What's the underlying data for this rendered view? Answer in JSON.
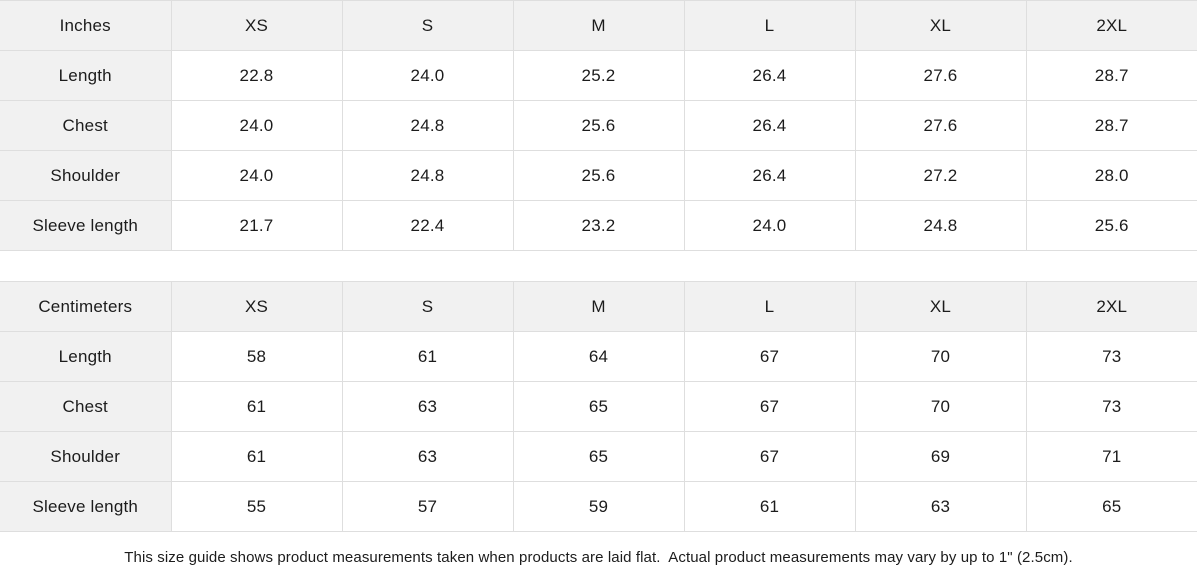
{
  "ui": {
    "header_bg": "#f1f1f1",
    "border_color": "#dedede",
    "text_color": "#1c1c1c",
    "background": "#ffffff"
  },
  "tables": [
    {
      "unit_label": "Inches",
      "sizes": [
        "XS",
        "S",
        "M",
        "L",
        "XL",
        "2XL"
      ],
      "rows": [
        {
          "label": "Length",
          "values": [
            "22.8",
            "24.0",
            "25.2",
            "26.4",
            "27.6",
            "28.7"
          ]
        },
        {
          "label": "Chest",
          "values": [
            "24.0",
            "24.8",
            "25.6",
            "26.4",
            "27.6",
            "28.7"
          ]
        },
        {
          "label": "Shoulder",
          "values": [
            "24.0",
            "24.8",
            "25.6",
            "26.4",
            "27.2",
            "28.0"
          ]
        },
        {
          "label": "Sleeve length",
          "values": [
            "21.7",
            "22.4",
            "23.2",
            "24.0",
            "24.8",
            "25.6"
          ]
        }
      ]
    },
    {
      "unit_label": "Centimeters",
      "sizes": [
        "XS",
        "S",
        "M",
        "L",
        "XL",
        "2XL"
      ],
      "rows": [
        {
          "label": "Length",
          "values": [
            "58",
            "61",
            "64",
            "67",
            "70",
            "73"
          ]
        },
        {
          "label": "Chest",
          "values": [
            "61",
            "63",
            "65",
            "67",
            "70",
            "73"
          ]
        },
        {
          "label": "Shoulder",
          "values": [
            "61",
            "63",
            "65",
            "67",
            "69",
            "71"
          ]
        },
        {
          "label": "Sleeve length",
          "values": [
            "55",
            "57",
            "59",
            "61",
            "63",
            "65"
          ]
        }
      ]
    }
  ],
  "footer": {
    "note": "This size guide shows product measurements taken when products are laid flat.  Actual product measurements may vary by up to 1\" (2.5cm)."
  },
  "chart_data": [
    {
      "type": "table",
      "title": "Inches",
      "columns": [
        "Inches",
        "XS",
        "S",
        "M",
        "L",
        "XL",
        "2XL"
      ],
      "rows": [
        [
          "Length",
          22.8,
          24.0,
          25.2,
          26.4,
          27.6,
          28.7
        ],
        [
          "Chest",
          24.0,
          24.8,
          25.6,
          26.4,
          27.6,
          28.7
        ],
        [
          "Shoulder",
          24.0,
          24.8,
          25.6,
          26.4,
          27.2,
          28.0
        ],
        [
          "Sleeve length",
          21.7,
          22.4,
          23.2,
          24.0,
          24.8,
          25.6
        ]
      ]
    },
    {
      "type": "table",
      "title": "Centimeters",
      "columns": [
        "Centimeters",
        "XS",
        "S",
        "M",
        "L",
        "XL",
        "2XL"
      ],
      "rows": [
        [
          "Length",
          58,
          61,
          64,
          67,
          70,
          73
        ],
        [
          "Chest",
          61,
          63,
          65,
          67,
          70,
          73
        ],
        [
          "Shoulder",
          61,
          63,
          65,
          67,
          69,
          71
        ],
        [
          "Sleeve length",
          55,
          57,
          59,
          61,
          63,
          65
        ]
      ]
    }
  ]
}
